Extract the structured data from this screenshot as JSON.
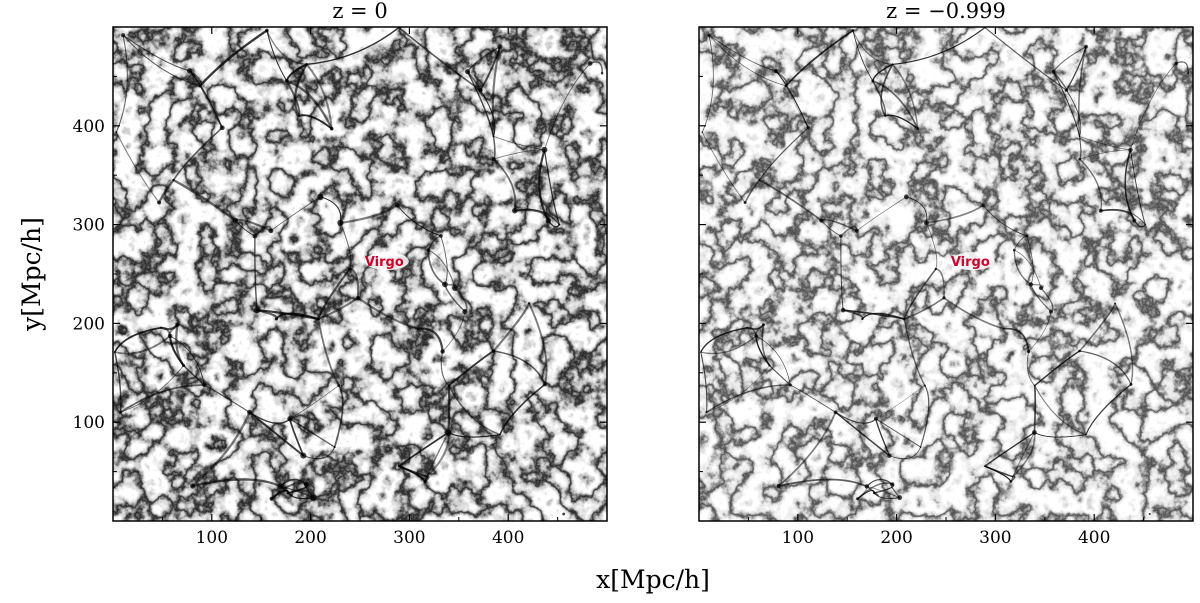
{
  "colors": {
    "web": "#000000",
    "annotation": "#d6002a",
    "background": "#ffffff"
  },
  "chart_data": {
    "type": "scatter",
    "render_style": "cosmic-web density map (grayscale dark-matter particle projection)",
    "xlabel": "x[Mpc/h]",
    "ylabel": "y[Mpc/h]",
    "xlim": [
      0,
      500
    ],
    "ylim": [
      0,
      500
    ],
    "grid": false,
    "legend": "none",
    "shared_y_axis": true,
    "panels": [
      {
        "title": "z = 0",
        "xticks": [
          100,
          200,
          300,
          400
        ],
        "yticks": [
          100,
          200,
          300,
          400
        ],
        "annotations": [
          {
            "text": "Virgo",
            "x": 265,
            "y": 262
          }
        ]
      },
      {
        "title": "z = −0.999",
        "xticks": [
          100,
          200,
          300,
          400
        ],
        "yticks": [],
        "annotations": [
          {
            "text": "Virgo",
            "x": 265,
            "y": 262
          }
        ]
      }
    ]
  }
}
